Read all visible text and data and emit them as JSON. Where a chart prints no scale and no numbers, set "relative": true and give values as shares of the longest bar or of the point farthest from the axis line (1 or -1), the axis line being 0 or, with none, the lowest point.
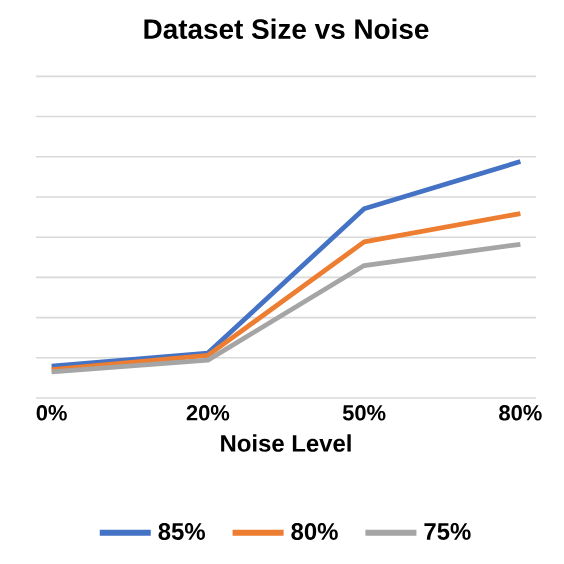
{
  "chart_data": {
    "type": "line",
    "title": "Dataset Size vs Noise",
    "xlabel": "Noise Level",
    "categories": [
      "0%",
      "20%",
      "50%",
      "80%"
    ],
    "relative": true,
    "grid": "y",
    "legend": "bottom",
    "series": [
      {
        "name": "85%",
        "color": "#4472c4",
        "values": [
          0.135,
          0.19,
          0.8,
          1
        ]
      },
      {
        "name": "80%",
        "color": "#ed7d31",
        "values": [
          0.12,
          0.18,
          0.66,
          0.78
        ]
      },
      {
        "name": "75%",
        "color": "#a5a5a5",
        "values": [
          0.11,
          0.16,
          0.56,
          0.65
        ]
      }
    ]
  }
}
